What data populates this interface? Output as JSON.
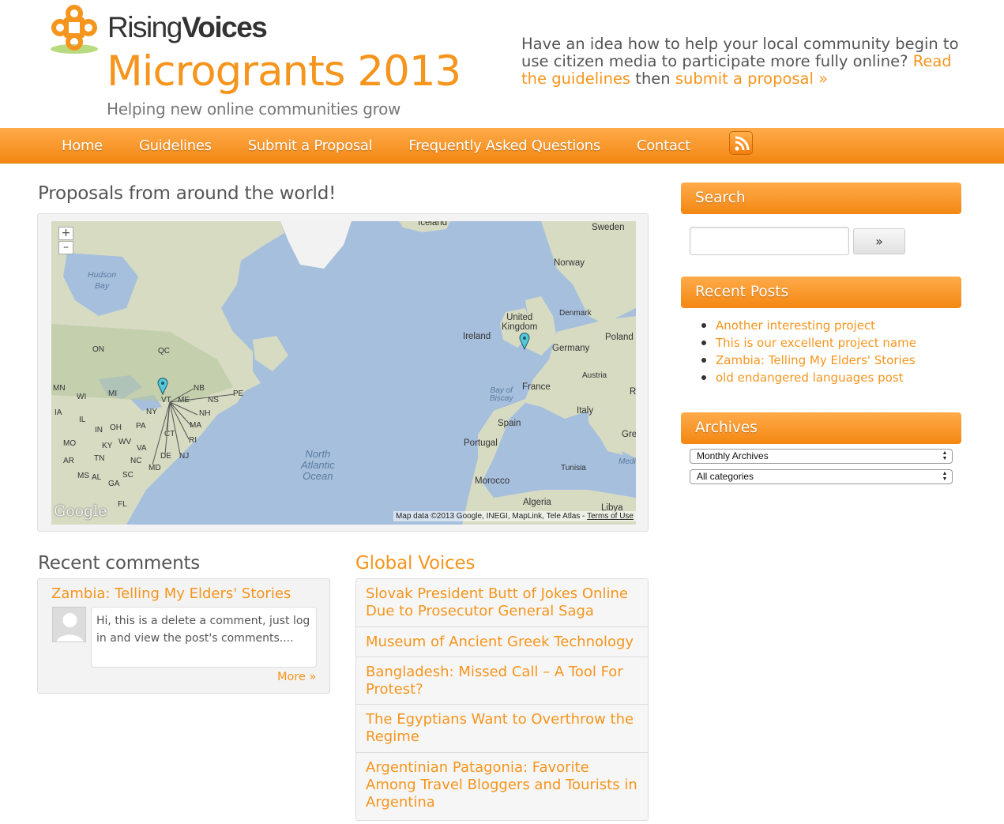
{
  "header": {
    "brand_part1": "Rising",
    "brand_part2": "Voices",
    "title": "Microgrants 2013",
    "tagline": "Helping new online communities grow",
    "pitch_text": "Have an idea how to help your local community begin to use citizen media to participate more fully online?",
    "pitch_link1": "Read the guidelines",
    "pitch_mid": "then",
    "pitch_link2": "submit a proposal »"
  },
  "nav": {
    "items": [
      "Home",
      "Guidelines",
      "Submit a Proposal",
      "Frequently Asked Questions",
      "Contact"
    ],
    "rss_icon": "rss-icon"
  },
  "map_section": {
    "title": "Proposals from around the world!",
    "zoom_in": "+",
    "zoom_out": "–",
    "google": "Google",
    "attribution": "Map data ©2013 Google, INEGI, MapLink, Tele Atlas -",
    "terms": "Terms of Use",
    "labels": {
      "iceland": "Iceland",
      "sweden": "Sweden",
      "norway": "Norway",
      "hudson_bay": "Hudson\nBay",
      "denmark": "Denmark",
      "uk": "United\nKingdom",
      "ireland": "Ireland",
      "poland": "Poland",
      "germany": "Germany",
      "on": "ON",
      "qc": "QC",
      "austria": "Austria",
      "france": "France",
      "biscay": "Bay of\nBiscay",
      "italy": "Italy",
      "spain": "Spain",
      "portugal": "Portugal",
      "morocco": "Morocco",
      "algeria": "Algeria",
      "tunisia": "Tunisia",
      "libya": "Libya",
      "north_atlantic": "North\nAtlantic\nOcean",
      "mn": "MN",
      "wi": "WI",
      "mi": "MI",
      "ia": "IA",
      "il": "IL",
      "in": "IN",
      "oh": "OH",
      "pa": "PA",
      "ny": "NY",
      "vt": "VT",
      "me": "ME",
      "nb": "NB",
      "ns": "NS",
      "pe": "PE",
      "nh": "NH",
      "ma": "MA",
      "ct": "CT",
      "ri": "RI",
      "nj": "NJ",
      "de": "DE",
      "md": "MD",
      "va": "VA",
      "wv": "WV",
      "ky": "KY",
      "mo": "MO",
      "tn": "TN",
      "nc": "NC",
      "ar": "AR",
      "ms": "MS",
      "al": "AL",
      "ga": "GA",
      "sc": "SC",
      "fl": "FL",
      "r": "R",
      "gre": "Gre",
      "medi": "Medi"
    }
  },
  "recent_comments": {
    "title": "Recent comments",
    "post_title": "Zambia: Telling My Elders' Stories",
    "comment": "Hi, this is a delete a comment, just log in and view the post's comments....",
    "more": "More »"
  },
  "global_voices": {
    "title": "Global Voices",
    "items": [
      "Slovak President Butt of Jokes Online Due to Prosecutor General Saga",
      "Museum of Ancient Greek Technology",
      "Bangladesh: Missed Call – A Tool For Protest?",
      "The Egyptians Want to Overthrow the Regime",
      "Argentinian Patagonia: Favorite Among Travel Bloggers and Tourists in Argentina"
    ]
  },
  "sidebar": {
    "search_title": "Search",
    "search_value": "",
    "search_button": "»",
    "recent_posts_title": "Recent Posts",
    "recent_posts": [
      "Another interesting project",
      "This is our excellent project name",
      "Zambia: Telling My Elders' Stories",
      "old endangered languages post"
    ],
    "archives_title": "Archives",
    "archives_select": "Monthly Archives",
    "categories_select": "All categories"
  },
  "colors": {
    "accent": "#f5951d",
    "nav_top": "#ffab4a",
    "nav_bottom": "#f38712",
    "ocean": "#a6bfdd",
    "land": "#d6dbc2"
  }
}
